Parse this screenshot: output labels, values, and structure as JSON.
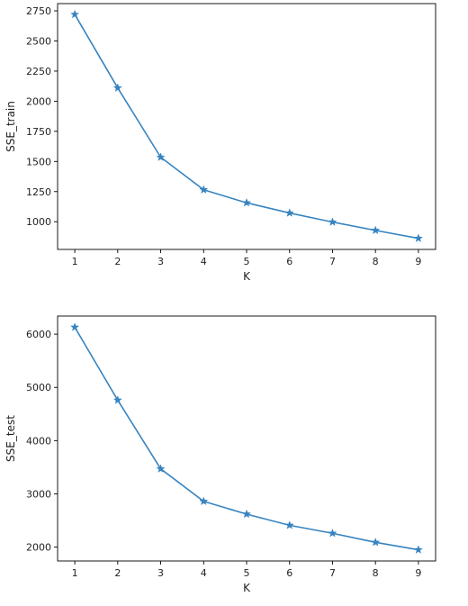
{
  "chart_data": [
    {
      "type": "line",
      "x": [
        1,
        2,
        3,
        4,
        5,
        6,
        7,
        8,
        9
      ],
      "y": [
        2720,
        2110,
        1535,
        1265,
        1157,
        1072,
        997,
        928,
        862
      ],
      "xlabel": "K",
      "ylabel": "SSE_train",
      "xticks": [
        1,
        2,
        3,
        4,
        5,
        6,
        7,
        8,
        9
      ],
      "yticks": [
        1000,
        1250,
        1500,
        1750,
        2000,
        2250,
        2500,
        2750
      ],
      "xlim": [
        0.6,
        9.4
      ],
      "ylim": [
        770,
        2810
      ],
      "marker": "star",
      "line_color": "#3784c0",
      "grid": false,
      "legend": false
    },
    {
      "type": "line",
      "x": [
        1,
        2,
        3,
        4,
        5,
        6,
        7,
        8,
        9
      ],
      "y": [
        6130,
        4760,
        3470,
        2860,
        2620,
        2410,
        2260,
        2090,
        1950
      ],
      "xlabel": "K",
      "ylabel": "SSE_test",
      "xticks": [
        1,
        2,
        3,
        4,
        5,
        6,
        7,
        8,
        9
      ],
      "yticks": [
        2000,
        3000,
        4000,
        5000,
        6000
      ],
      "xlim": [
        0.6,
        9.4
      ],
      "ylim": [
        1740,
        6340
      ],
      "marker": "star",
      "line_color": "#3784c0",
      "grid": false,
      "legend": false
    }
  ]
}
